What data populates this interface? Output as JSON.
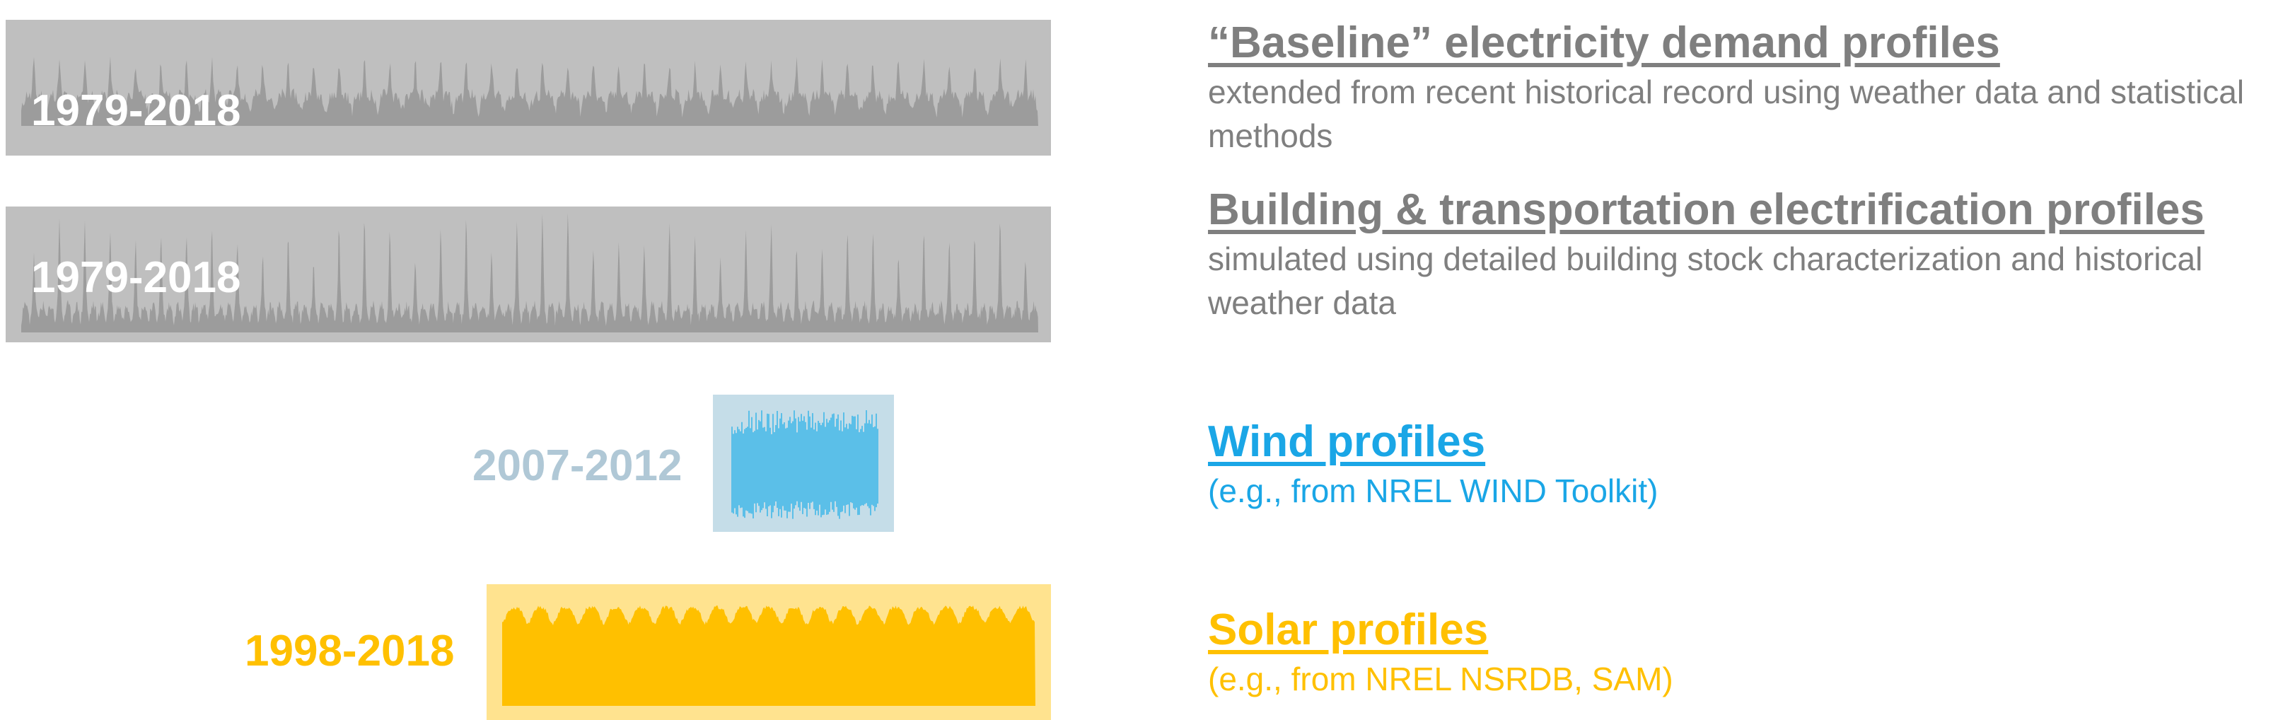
{
  "profiles": [
    {
      "id": "baseline",
      "years": "1979-2018",
      "title": "“Baseline” electricity demand profiles",
      "description": "extended from recent historical record using weather data and statistical methods",
      "colors": {
        "title": "#7f7f7f",
        "text": "#7f7f7f",
        "years": "#ffffff",
        "box": "#bfbfbf",
        "series": "#9c9c9c"
      }
    },
    {
      "id": "electrification",
      "years": "1979-2018",
      "title": "Building & transportation electrification profiles",
      "description": "simulated using detailed building stock characterization and historical weather data",
      "colors": {
        "title": "#7f7f7f",
        "text": "#7f7f7f",
        "years": "#ffffff",
        "box": "#bfbfbf",
        "series": "#9c9c9c"
      }
    },
    {
      "id": "wind",
      "years": "2007-2012",
      "title": "Wind profiles",
      "description": "(e.g., from NREL WIND Toolkit)",
      "colors": {
        "title": "#1aa6e6",
        "text": "#1aa6e6",
        "years": "#b0c8d6",
        "box": "#c5dde8",
        "series": "#5bbfe8"
      }
    },
    {
      "id": "solar",
      "years": "1998-2018",
      "title": "Solar profiles",
      "description": "(e.g., from NREL NSRDB, SAM)",
      "colors": {
        "title": "#ffc000",
        "text": "#ffc000",
        "years": "#ffc000",
        "box": "#ffe38f",
        "series": "#ffc000"
      }
    }
  ]
}
